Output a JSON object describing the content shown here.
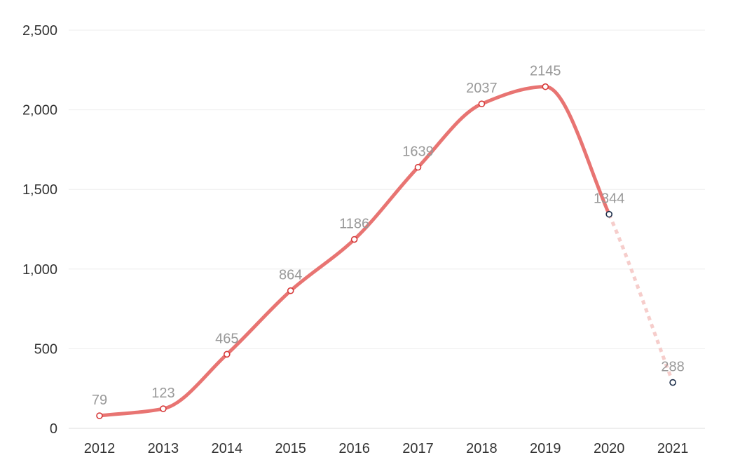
{
  "chart_data": {
    "type": "line",
    "title": "",
    "xlabel": "",
    "ylabel": "",
    "categories": [
      "2012",
      "2013",
      "2014",
      "2015",
      "2016",
      "2017",
      "2018",
      "2019",
      "2020",
      "2021"
    ],
    "values": [
      79,
      123,
      465,
      864,
      1186,
      1639,
      2037,
      2145,
      1344,
      288
    ],
    "data_labels": [
      "79",
      "123",
      "465",
      "864",
      "1186",
      "1639",
      "2037",
      "2145",
      "1344",
      "288"
    ],
    "ylim": [
      0,
      2500
    ],
    "yticks": [
      0,
      500,
      1000,
      1500,
      2000,
      2500
    ],
    "ytick_labels": [
      "0",
      "500",
      "1,000",
      "1,500",
      "2,000",
      "2,500"
    ],
    "grid": true,
    "smooth": true,
    "solid_through": "2020",
    "dashed_segment": [
      "2020",
      "2021"
    ],
    "colors": {
      "line": "#e87472",
      "dashed_line": "#f6cdcb",
      "point_stroke": "#d63a3a",
      "point_stroke_alt": "#1c2e4a",
      "grid": "#eeeeee",
      "tick_text": "#333333",
      "data_label": "#999999"
    }
  }
}
